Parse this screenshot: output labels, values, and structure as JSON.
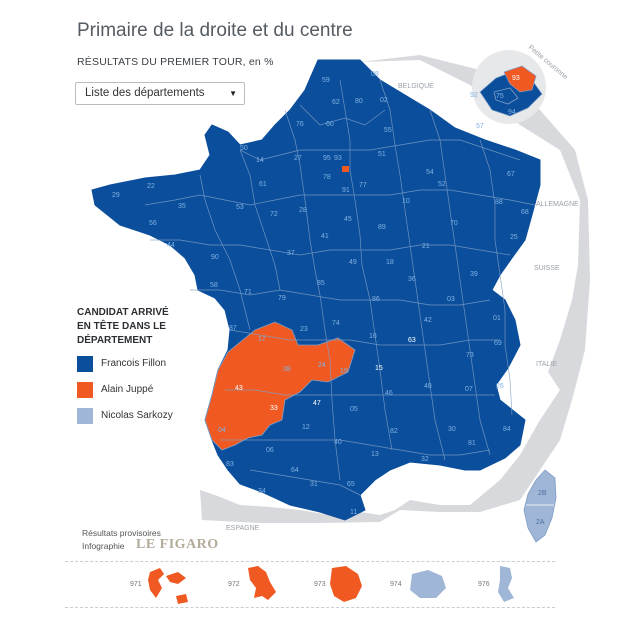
{
  "header": {
    "title": "Primaire de la droite et du centre",
    "subtitle": "RÉSULTATS DU PREMIER TOUR, en %"
  },
  "department_select": {
    "selected": "Liste des départements"
  },
  "legend": {
    "title_lines": [
      "CANDIDAT ARRIVÉ",
      "EN TÊTE DANS LE",
      "DÉPARTEMENT"
    ],
    "items": [
      {
        "label": "Francois Fillon",
        "color": "#0b4f9c"
      },
      {
        "label": "Alain Juppé",
        "color": "#f05a22"
      },
      {
        "label": "Nicolas Sarkozy",
        "color": "#9fb6d6"
      }
    ]
  },
  "colors": {
    "fillon": "#0b4f9c",
    "juppe": "#f05a22",
    "sarkozy": "#9fb6d6",
    "border": "#7f9ec6",
    "label": "#7fb0e2",
    "neighbor": "#d7d9dc",
    "sea": "#ffffff"
  },
  "neighbors": [
    "BELGIQUE",
    "ALLEMAGNE",
    "SUISSE",
    "ITALIE",
    "ESPAGNE"
  ],
  "inset": {
    "title": "Petite couronne",
    "labels": [
      "92",
      "75",
      "93",
      "94"
    ]
  },
  "map_labels": [
    "59",
    "62",
    "80",
    "02",
    "08",
    "76",
    "60",
    "55",
    "57",
    "50",
    "14",
    "27",
    "95",
    "51",
    "54",
    "67",
    "29",
    "22",
    "61",
    "78",
    "93",
    "77",
    "52",
    "88",
    "68",
    "35",
    "53",
    "28",
    "91",
    "10",
    "56",
    "72",
    "45",
    "89",
    "70",
    "25",
    "44",
    "37",
    "41",
    "21",
    "39",
    "90",
    "49",
    "18",
    "58",
    "85",
    "36",
    "71",
    "79",
    "86",
    "03",
    "01",
    "74",
    "23",
    "87",
    "17",
    "16",
    "63",
    "42",
    "69",
    "73",
    "38",
    "24",
    "19",
    "15",
    "43",
    "33",
    "47",
    "46",
    "48",
    "07",
    "26",
    "05",
    "12",
    "82",
    "30",
    "84",
    "04",
    "06",
    "40",
    "32",
    "81",
    "13",
    "83",
    "34",
    "64",
    "65",
    "31",
    "11",
    "09",
    "66",
    "2B",
    "2A"
  ],
  "overseas": [
    {
      "code": "971",
      "winner": "juppe"
    },
    {
      "code": "972",
      "winner": "juppe"
    },
    {
      "code": "973",
      "winner": "juppe"
    },
    {
      "code": "974",
      "winner": "sarkozy"
    },
    {
      "code": "976",
      "winner": "sarkozy"
    }
  ],
  "footer": {
    "source": "Résultats provisoires",
    "credit": "Infographie",
    "brand": "LE FIGARO"
  }
}
